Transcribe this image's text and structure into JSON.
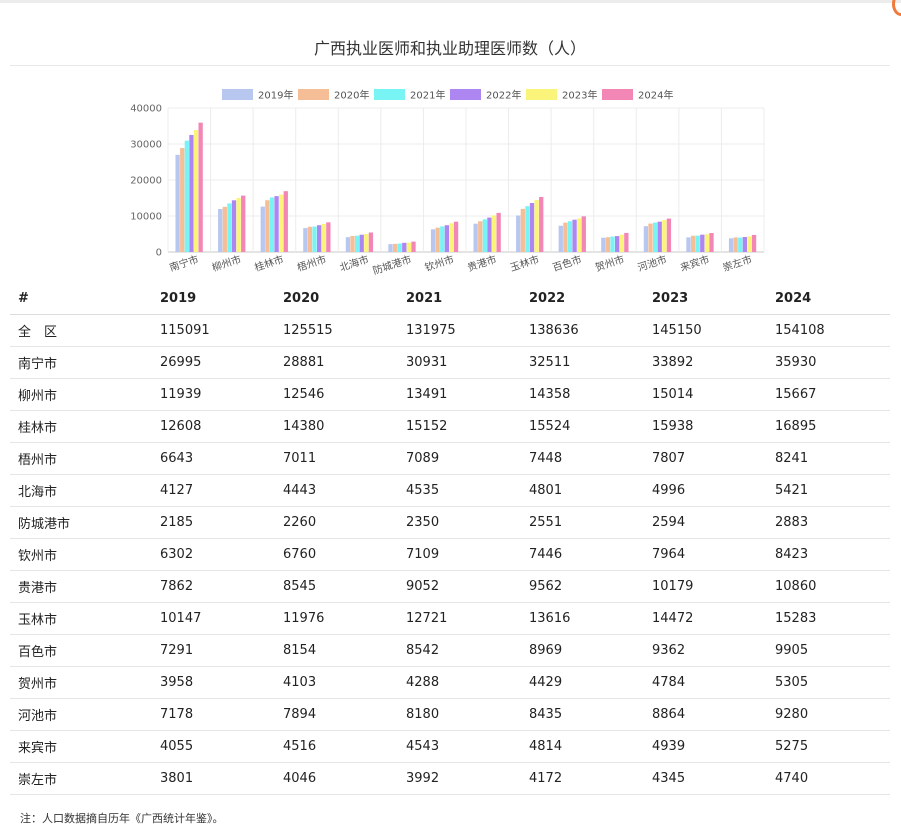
{
  "page": {
    "title": "广西执业医师和执业助理医师数（人）",
    "note": "注：人口数据摘自历年《广西统计年鉴》。"
  },
  "colors": {
    "2019年": "#b8c7ef",
    "2020年": "#f5be96",
    "2021年": "#79f4f4",
    "2022年": "#ad86f2",
    "2023年": "#fbf47a",
    "2024年": "#f287b5"
  },
  "chart_data": {
    "type": "bar",
    "title": "",
    "xlabel": "",
    "ylabel": "",
    "ylim": [
      0,
      40000
    ],
    "yticks": [
      0,
      10000,
      20000,
      30000,
      40000
    ],
    "grid": true,
    "legend_position": "top-center",
    "categories": [
      "南宁市",
      "柳州市",
      "桂林市",
      "梧州市",
      "北海市",
      "防城港市",
      "钦州市",
      "贵港市",
      "玉林市",
      "百色市",
      "贺州市",
      "河池市",
      "来宾市",
      "崇左市"
    ],
    "series": [
      {
        "name": "2019年",
        "values": [
          26995,
          11939,
          12608,
          6643,
          4127,
          2185,
          6302,
          7862,
          10147,
          7291,
          3958,
          7178,
          4055,
          3801
        ]
      },
      {
        "name": "2020年",
        "values": [
          28881,
          12546,
          14380,
          7011,
          4443,
          2260,
          6760,
          8545,
          11976,
          8154,
          4103,
          7894,
          4516,
          4046
        ]
      },
      {
        "name": "2021年",
        "values": [
          30931,
          13491,
          15152,
          7089,
          4535,
          2350,
          7109,
          9052,
          12721,
          8542,
          4288,
          8180,
          4543,
          3992
        ]
      },
      {
        "name": "2022年",
        "values": [
          32511,
          14358,
          15524,
          7448,
          4801,
          2551,
          7446,
          9562,
          13616,
          8969,
          4429,
          8435,
          4814,
          4172
        ]
      },
      {
        "name": "2023年",
        "values": [
          33892,
          15014,
          15938,
          7807,
          4996,
          2594,
          7964,
          10179,
          14472,
          9362,
          4784,
          8864,
          4939,
          4345
        ]
      },
      {
        "name": "2024年",
        "values": [
          35930,
          15667,
          16895,
          8241,
          5421,
          2883,
          8423,
          10860,
          15283,
          9905,
          5305,
          9280,
          5275,
          4740
        ]
      }
    ]
  },
  "table": {
    "headers": [
      "#",
      "2019",
      "2020",
      "2021",
      "2022",
      "2023",
      "2024"
    ],
    "rows": [
      [
        "全　区",
        "115091",
        "125515",
        "131975",
        "138636",
        "145150",
        "154108"
      ],
      [
        "南宁市",
        "26995",
        "28881",
        "30931",
        "32511",
        "33892",
        "35930"
      ],
      [
        "柳州市",
        "11939",
        "12546",
        "13491",
        "14358",
        "15014",
        "15667"
      ],
      [
        "桂林市",
        "12608",
        "14380",
        "15152",
        "15524",
        "15938",
        "16895"
      ],
      [
        "梧州市",
        "6643",
        "7011",
        "7089",
        "7448",
        "7807",
        "8241"
      ],
      [
        "北海市",
        "4127",
        "4443",
        "4535",
        "4801",
        "4996",
        "5421"
      ],
      [
        "防城港市",
        "2185",
        "2260",
        "2350",
        "2551",
        "2594",
        "2883"
      ],
      [
        "钦州市",
        "6302",
        "6760",
        "7109",
        "7446",
        "7964",
        "8423"
      ],
      [
        "贵港市",
        "7862",
        "8545",
        "9052",
        "9562",
        "10179",
        "10860"
      ],
      [
        "玉林市",
        "10147",
        "11976",
        "12721",
        "13616",
        "14472",
        "15283"
      ],
      [
        "百色市",
        "7291",
        "8154",
        "8542",
        "8969",
        "9362",
        "9905"
      ],
      [
        "贺州市",
        "3958",
        "4103",
        "4288",
        "4429",
        "4784",
        "5305"
      ],
      [
        "河池市",
        "7178",
        "7894",
        "8180",
        "8435",
        "8864",
        "9280"
      ],
      [
        "来宾市",
        "4055",
        "4516",
        "4543",
        "4814",
        "4939",
        "5275"
      ],
      [
        "崇左市",
        "3801",
        "4046",
        "3992",
        "4172",
        "4345",
        "4740"
      ]
    ]
  }
}
